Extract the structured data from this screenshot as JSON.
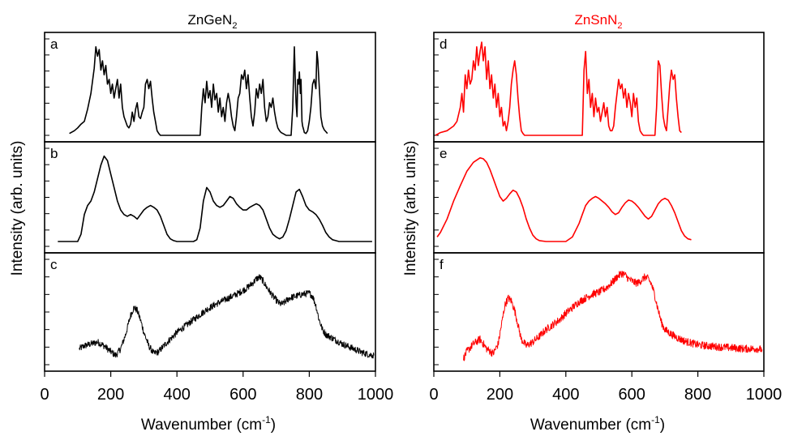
{
  "figure": {
    "columns": [
      {
        "title_main": "ZnGeN",
        "title_sub": "2",
        "color": "#000000"
      },
      {
        "title_main": "ZnSnN",
        "title_sub": "2",
        "color": "#ff0000"
      }
    ],
    "ylabel": "Intensity (arb. units)",
    "xlabel_main": "Wavenumber (cm",
    "xlabel_sup": "-1",
    "xlabel_end": ")"
  },
  "chart_data": [
    {
      "type": "line",
      "panel": "a",
      "color": "#000000",
      "xlim": [
        0,
        1000
      ],
      "xticks": [
        0,
        200,
        400,
        600,
        800,
        1000
      ],
      "ylim": [
        0,
        1
      ],
      "noise": 0,
      "x": [
        75,
        90,
        100,
        110,
        120,
        130,
        140,
        150,
        155,
        160,
        165,
        170,
        175,
        180,
        185,
        190,
        195,
        200,
        205,
        210,
        215,
        220,
        225,
        230,
        235,
        240,
        250,
        255,
        260,
        265,
        270,
        275,
        280,
        285,
        290,
        295,
        300,
        305,
        310,
        315,
        320,
        325,
        330,
        335,
        340,
        345,
        350,
        380,
        470,
        475,
        480,
        485,
        490,
        495,
        500,
        505,
        510,
        515,
        520,
        525,
        530,
        535,
        540,
        545,
        550,
        555,
        560,
        565,
        570,
        575,
        580,
        585,
        590,
        595,
        600,
        605,
        610,
        615,
        620,
        625,
        630,
        635,
        640,
        645,
        650,
        655,
        660,
        665,
        670,
        675,
        680,
        685,
        690,
        695,
        700,
        705,
        710,
        715,
        720,
        725,
        730,
        735,
        740,
        745,
        750,
        753,
        755,
        758,
        760,
        763,
        765,
        768,
        770,
        773,
        775,
        778,
        780,
        783,
        785,
        790,
        795,
        800,
        805,
        810,
        815,
        820,
        823,
        826,
        829,
        832,
        835,
        840,
        845,
        850,
        855
      ],
      "y": [
        0.02,
        0.05,
        0.08,
        0.12,
        0.15,
        0.28,
        0.45,
        0.72,
        0.95,
        0.85,
        0.92,
        0.7,
        0.8,
        0.65,
        0.75,
        0.55,
        0.6,
        0.45,
        0.55,
        0.4,
        0.5,
        0.6,
        0.4,
        0.55,
        0.3,
        0.2,
        0.1,
        0.08,
        0.12,
        0.25,
        0.15,
        0.28,
        0.35,
        0.2,
        0.18,
        0.25,
        0.3,
        0.55,
        0.6,
        0.5,
        0.58,
        0.4,
        0.25,
        0.15,
        0.05,
        0.02,
        0.0,
        0.0,
        0.0,
        0.3,
        0.5,
        0.35,
        0.58,
        0.4,
        0.48,
        0.3,
        0.55,
        0.38,
        0.45,
        0.25,
        0.4,
        0.2,
        0.3,
        0.15,
        0.35,
        0.45,
        0.35,
        0.2,
        0.1,
        0.05,
        0.2,
        0.4,
        0.45,
        0.65,
        0.6,
        0.7,
        0.5,
        0.65,
        0.4,
        0.2,
        0.1,
        0.25,
        0.5,
        0.4,
        0.55,
        0.45,
        0.6,
        0.3,
        0.15,
        0.2,
        0.35,
        0.3,
        0.4,
        0.25,
        0.15,
        0.08,
        0.05,
        0.03,
        0.02,
        0.01,
        0.0,
        0.0,
        0.0,
        0.0,
        0.3,
        0.7,
        0.95,
        0.55,
        0.35,
        0.2,
        0.6,
        0.55,
        0.68,
        0.45,
        0.6,
        0.15,
        0.1,
        0.06,
        0.03,
        0.02,
        0.05,
        0.15,
        0.3,
        0.55,
        0.6,
        0.5,
        0.9,
        0.8,
        0.6,
        0.4,
        0.2,
        0.1,
        0.06,
        0.04,
        0.02
      ]
    },
    {
      "type": "line",
      "panel": "b",
      "color": "#000000",
      "xlim": [
        0,
        1000
      ],
      "xticks": [
        0,
        200,
        400,
        600,
        800,
        1000
      ],
      "ylim": [
        0,
        1
      ],
      "noise": 0,
      "x": [
        40,
        100,
        110,
        120,
        130,
        140,
        150,
        160,
        170,
        180,
        190,
        200,
        210,
        220,
        230,
        240,
        250,
        260,
        270,
        280,
        290,
        300,
        310,
        320,
        330,
        340,
        350,
        360,
        370,
        380,
        390,
        400,
        410,
        420,
        430,
        440,
        450,
        460,
        470,
        480,
        490,
        500,
        510,
        520,
        530,
        540,
        550,
        560,
        570,
        580,
        590,
        600,
        610,
        620,
        630,
        640,
        650,
        660,
        670,
        680,
        690,
        700,
        710,
        720,
        730,
        740,
        750,
        760,
        770,
        780,
        790,
        800,
        810,
        820,
        830,
        840,
        850,
        860,
        870,
        880,
        890,
        900,
        990
      ],
      "y": [
        0.0,
        0.0,
        0.08,
        0.3,
        0.4,
        0.45,
        0.55,
        0.7,
        0.85,
        0.95,
        0.9,
        0.75,
        0.6,
        0.45,
        0.35,
        0.3,
        0.28,
        0.3,
        0.28,
        0.25,
        0.3,
        0.35,
        0.38,
        0.4,
        0.38,
        0.35,
        0.28,
        0.18,
        0.08,
        0.03,
        0.01,
        0.0,
        0.0,
        0.0,
        0.0,
        0.0,
        0.0,
        0.02,
        0.15,
        0.45,
        0.6,
        0.55,
        0.45,
        0.4,
        0.38,
        0.4,
        0.45,
        0.5,
        0.48,
        0.42,
        0.38,
        0.35,
        0.35,
        0.38,
        0.4,
        0.42,
        0.4,
        0.35,
        0.25,
        0.15,
        0.08,
        0.05,
        0.03,
        0.05,
        0.12,
        0.25,
        0.4,
        0.55,
        0.58,
        0.5,
        0.4,
        0.35,
        0.33,
        0.3,
        0.25,
        0.18,
        0.1,
        0.05,
        0.02,
        0.01,
        0.0,
        0.0,
        0.0
      ]
    },
    {
      "type": "line",
      "panel": "c",
      "color": "#000000",
      "xlim": [
        0,
        1000
      ],
      "xticks": [
        0,
        200,
        400,
        600,
        800,
        1000
      ],
      "ylim": [
        0,
        1
      ],
      "noise": 0.035,
      "x": [
        105,
        120,
        140,
        160,
        180,
        200,
        215,
        230,
        245,
        260,
        270,
        280,
        290,
        300,
        315,
        330,
        345,
        360,
        380,
        400,
        430,
        460,
        490,
        520,
        550,
        580,
        610,
        630,
        640,
        650,
        660,
        670,
        680,
        690,
        700,
        710,
        720,
        730,
        740,
        760,
        780,
        800,
        810,
        820,
        830,
        840,
        850,
        860,
        880,
        900,
        920,
        940,
        960,
        980,
        995
      ],
      "y": [
        0.15,
        0.18,
        0.2,
        0.22,
        0.18,
        0.12,
        0.08,
        0.15,
        0.3,
        0.5,
        0.58,
        0.55,
        0.45,
        0.32,
        0.18,
        0.1,
        0.12,
        0.18,
        0.25,
        0.32,
        0.4,
        0.48,
        0.56,
        0.62,
        0.67,
        0.72,
        0.78,
        0.84,
        0.88,
        0.9,
        0.86,
        0.8,
        0.75,
        0.7,
        0.66,
        0.62,
        0.62,
        0.65,
        0.68,
        0.7,
        0.72,
        0.73,
        0.7,
        0.6,
        0.45,
        0.35,
        0.3,
        0.28,
        0.24,
        0.2,
        0.17,
        0.14,
        0.11,
        0.09,
        0.08
      ]
    },
    {
      "type": "line",
      "panel": "d",
      "color": "#ff0000",
      "xlim": [
        0,
        1000
      ],
      "xticks": [
        0,
        200,
        400,
        600,
        800,
        1000
      ],
      "ylim": [
        0,
        1
      ],
      "noise": 0,
      "x": [
        5,
        20,
        40,
        60,
        70,
        80,
        85,
        90,
        95,
        100,
        105,
        110,
        115,
        120,
        125,
        130,
        135,
        140,
        145,
        150,
        155,
        160,
        165,
        170,
        175,
        180,
        185,
        190,
        195,
        200,
        205,
        210,
        215,
        220,
        225,
        230,
        235,
        240,
        245,
        250,
        255,
        260,
        265,
        270,
        275,
        280,
        450,
        455,
        460,
        465,
        470,
        475,
        480,
        485,
        490,
        495,
        500,
        505,
        510,
        515,
        520,
        525,
        530,
        535,
        540,
        545,
        550,
        555,
        560,
        565,
        570,
        575,
        580,
        585,
        590,
        595,
        600,
        605,
        610,
        615,
        620,
        625,
        630,
        635,
        640,
        645,
        650,
        670,
        675,
        680,
        685,
        690,
        695,
        700,
        705,
        710,
        715,
        720,
        725,
        730,
        735,
        740,
        745,
        750
      ],
      "y": [
        0.0,
        0.03,
        0.05,
        0.1,
        0.15,
        0.3,
        0.45,
        0.25,
        0.65,
        0.5,
        0.7,
        0.55,
        0.6,
        0.8,
        0.7,
        0.95,
        0.75,
        0.9,
        1.0,
        0.8,
        0.95,
        0.6,
        0.8,
        0.5,
        0.65,
        0.4,
        0.55,
        0.3,
        0.45,
        0.2,
        0.3,
        0.1,
        0.15,
        0.05,
        0.15,
        0.3,
        0.55,
        0.7,
        0.8,
        0.65,
        0.4,
        0.2,
        0.05,
        0.02,
        0.0,
        0.0,
        0.0,
        0.7,
        0.9,
        0.45,
        0.6,
        0.3,
        0.45,
        0.2,
        0.4,
        0.25,
        0.3,
        0.15,
        0.25,
        0.35,
        0.2,
        0.3,
        0.1,
        0.05,
        0.05,
        0.1,
        0.3,
        0.45,
        0.6,
        0.5,
        0.55,
        0.4,
        0.5,
        0.3,
        0.45,
        0.35,
        0.2,
        0.45,
        0.3,
        0.4,
        0.15,
        0.05,
        0.02,
        0.0,
        0.0,
        0.0,
        0.0,
        0.0,
        0.3,
        0.8,
        0.75,
        0.45,
        0.2,
        0.1,
        0.05,
        0.3,
        0.55,
        0.7,
        0.6,
        0.65,
        0.4,
        0.2,
        0.05,
        0.03
      ]
    },
    {
      "type": "line",
      "panel": "e",
      "color": "#ff0000",
      "xlim": [
        0,
        1000
      ],
      "xticks": [
        0,
        200,
        400,
        600,
        800,
        1000
      ],
      "ylim": [
        0,
        1
      ],
      "noise": 0,
      "x": [
        10,
        20,
        40,
        60,
        80,
        100,
        120,
        140,
        150,
        160,
        170,
        180,
        190,
        200,
        210,
        220,
        230,
        240,
        250,
        260,
        270,
        280,
        290,
        300,
        310,
        320,
        340,
        360,
        380,
        400,
        420,
        440,
        450,
        460,
        470,
        480,
        490,
        500,
        510,
        520,
        530,
        540,
        550,
        560,
        570,
        580,
        590,
        600,
        610,
        620,
        630,
        640,
        650,
        660,
        670,
        680,
        690,
        700,
        710,
        720,
        730,
        740,
        750,
        760,
        770,
        780
      ],
      "y": [
        0.05,
        0.1,
        0.25,
        0.45,
        0.62,
        0.78,
        0.88,
        0.93,
        0.92,
        0.88,
        0.8,
        0.7,
        0.6,
        0.5,
        0.45,
        0.48,
        0.53,
        0.57,
        0.55,
        0.48,
        0.38,
        0.25,
        0.15,
        0.07,
        0.03,
        0.01,
        0.0,
        0.0,
        0.0,
        0.0,
        0.05,
        0.2,
        0.3,
        0.4,
        0.45,
        0.48,
        0.5,
        0.48,
        0.45,
        0.42,
        0.38,
        0.33,
        0.3,
        0.32,
        0.38,
        0.43,
        0.46,
        0.45,
        0.42,
        0.38,
        0.33,
        0.28,
        0.25,
        0.28,
        0.35,
        0.42,
        0.46,
        0.48,
        0.46,
        0.4,
        0.32,
        0.22,
        0.12,
        0.06,
        0.03,
        0.02
      ]
    },
    {
      "type": "line",
      "panel": "f",
      "color": "#ff0000",
      "xlim": [
        0,
        1000
      ],
      "xticks": [
        0,
        200,
        400,
        600,
        800,
        1000
      ],
      "ylim": [
        0,
        1
      ],
      "noise": 0.04,
      "x": [
        90,
        100,
        120,
        140,
        160,
        180,
        195,
        205,
        215,
        225,
        235,
        245,
        255,
        265,
        280,
        300,
        320,
        340,
        360,
        380,
        400,
        420,
        440,
        460,
        480,
        500,
        520,
        540,
        555,
        570,
        580,
        590,
        600,
        610,
        620,
        630,
        640,
        650,
        660,
        670,
        680,
        690,
        700,
        720,
        740,
        760,
        780,
        800,
        830,
        860,
        900,
        940,
        980,
        995
      ],
      "y": [
        0.05,
        0.12,
        0.2,
        0.25,
        0.15,
        0.1,
        0.2,
        0.4,
        0.6,
        0.68,
        0.65,
        0.55,
        0.4,
        0.25,
        0.18,
        0.22,
        0.28,
        0.35,
        0.4,
        0.45,
        0.52,
        0.58,
        0.64,
        0.68,
        0.72,
        0.74,
        0.78,
        0.84,
        0.9,
        0.94,
        0.92,
        0.88,
        0.86,
        0.84,
        0.84,
        0.87,
        0.9,
        0.88,
        0.82,
        0.7,
        0.55,
        0.42,
        0.35,
        0.3,
        0.26,
        0.23,
        0.21,
        0.19,
        0.18,
        0.17,
        0.16,
        0.15,
        0.15,
        0.14
      ]
    }
  ]
}
